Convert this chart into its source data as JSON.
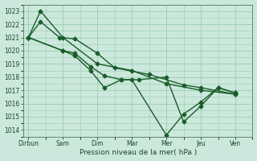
{
  "background_color": "#cce8dc",
  "grid_color": "#99ccb3",
  "line_color": "#1a5c2a",
  "x_labels": [
    "Dirbun",
    "Sam",
    "Dim",
    "Mar",
    "Mer",
    "Jeu",
    "Ven"
  ],
  "xlabel": "Pression niveau de la mer( hPa )",
  "ylim": [
    1013.5,
    1023.5
  ],
  "yticks": [
    1014,
    1015,
    1016,
    1017,
    1018,
    1019,
    1020,
    1021,
    1022,
    1023
  ],
  "x_tick_positions": [
    0,
    1,
    2,
    3,
    4,
    5,
    6
  ],
  "xlim": [
    -0.15,
    6.5
  ],
  "series_data": [
    {
      "x": [
        0.0,
        0.35,
        1.0,
        2.0,
        3.0,
        4.0,
        5.0,
        6.0
      ],
      "y": [
        1021.0,
        1023.0,
        1021.0,
        1019.0,
        1018.5,
        1017.5,
        1017.0,
        1016.7
      ]
    },
    {
      "x": [
        0.0,
        0.35,
        0.9,
        1.35,
        2.0,
        2.5,
        3.5,
        4.5,
        5.0,
        6.0
      ],
      "y": [
        1021.0,
        1022.2,
        1021.0,
        1020.9,
        1019.8,
        1018.7,
        1018.2,
        1017.4,
        1017.2,
        1016.7
      ]
    },
    {
      "x": [
        0.0,
        1.0,
        1.35,
        1.8,
        2.2,
        2.7,
        3.2,
        4.0,
        4.5,
        5.0,
        5.5,
        6.0
      ],
      "y": [
        1021.0,
        1020.0,
        1019.8,
        1018.8,
        1018.1,
        1017.8,
        1017.8,
        1018.0,
        1014.6,
        1015.8,
        1017.2,
        1016.8
      ]
    },
    {
      "x": [
        0.0,
        1.0,
        1.35,
        1.8,
        2.2,
        2.7,
        3.0,
        4.0,
        4.5,
        5.0,
        5.5,
        6.0
      ],
      "y": [
        1021.0,
        1020.0,
        1019.6,
        1018.5,
        1017.2,
        1017.8,
        1017.8,
        1013.6,
        1015.2,
        1016.1,
        1017.2,
        1016.8
      ]
    }
  ],
  "marker_size": 2.5,
  "linewidth": 1.0
}
